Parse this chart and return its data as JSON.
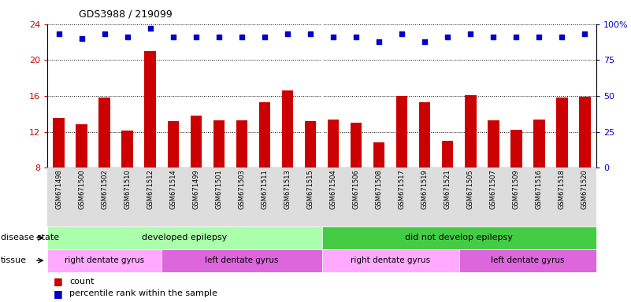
{
  "title": "GDS3988 / 219099",
  "samples": [
    "GSM671498",
    "GSM671500",
    "GSM671502",
    "GSM671510",
    "GSM671512",
    "GSM671514",
    "GSM671499",
    "GSM671501",
    "GSM671503",
    "GSM671511",
    "GSM671513",
    "GSM671515",
    "GSM671504",
    "GSM671506",
    "GSM671508",
    "GSM671517",
    "GSM671519",
    "GSM671521",
    "GSM671505",
    "GSM671507",
    "GSM671509",
    "GSM671516",
    "GSM671518",
    "GSM671520"
  ],
  "bar_values": [
    13.5,
    12.8,
    15.8,
    12.1,
    21.0,
    13.2,
    13.8,
    13.3,
    13.3,
    15.3,
    16.6,
    13.2,
    13.4,
    13.0,
    10.8,
    16.0,
    15.3,
    11.0,
    16.1,
    13.3,
    12.2,
    13.4,
    15.8,
    15.9
  ],
  "percentile_values": [
    93,
    90,
    93,
    91,
    97,
    91,
    91,
    91,
    91,
    91,
    93,
    93,
    91,
    91,
    88,
    93,
    88,
    91,
    93,
    91,
    91,
    91,
    91,
    93
  ],
  "bar_color": "#cc0000",
  "dot_color": "#0000cc",
  "ylim_left": [
    8,
    24
  ],
  "ylim_right": [
    0,
    100
  ],
  "yticks_left": [
    8,
    12,
    16,
    20,
    24
  ],
  "yticks_right": [
    0,
    25,
    50,
    75,
    100
  ],
  "ytick_labels_right": [
    "0",
    "25",
    "50",
    "75",
    "100%"
  ],
  "background_color": "#ffffff",
  "ax_facecolor": "#ffffff",
  "disease_state_groups": [
    {
      "label": "developed epilepsy",
      "start": 0,
      "end": 11,
      "color": "#aaffaa"
    },
    {
      "label": "did not develop epilepsy",
      "start": 12,
      "end": 23,
      "color": "#44cc44"
    }
  ],
  "tissue_groups": [
    {
      "label": "right dentate gyrus",
      "start": 0,
      "end": 4,
      "color": "#ffaaff"
    },
    {
      "label": "left dentate gyrus",
      "start": 5,
      "end": 11,
      "color": "#dd66dd"
    },
    {
      "label": "right dentate gyrus",
      "start": 12,
      "end": 17,
      "color": "#ffaaff"
    },
    {
      "label": "left dentate gyrus",
      "start": 18,
      "end": 23,
      "color": "#dd66dd"
    }
  ],
  "legend_count_color": "#cc0000",
  "legend_pct_color": "#0000cc",
  "xlabel_disease": "disease state",
  "xlabel_tissue": "tissue",
  "bar_width": 0.5,
  "xtick_bg": "#dddddd"
}
